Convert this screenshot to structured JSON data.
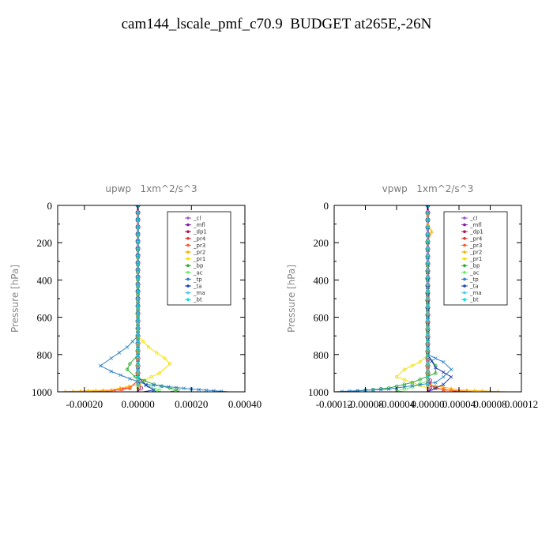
{
  "title": "cam144_lscale_pmf_c70.9  BUDGET at265E,-26N",
  "legend_entries": [
    "_cl",
    "_mfl",
    "_dp1",
    "_pr4",
    "_pr3",
    "_pr2",
    "_pr1",
    "_bp",
    "_ac",
    "_tp",
    "_ta",
    "_ma",
    "_bt"
  ],
  "colors": {
    "_cl": "#9b59d0",
    "_mfl": "#7b1fa2",
    "_dp1": "#b0125a",
    "_pr4": "#e0303a",
    "_pr3": "#ff5a1e",
    "_pr2": "#ffb000",
    "_pr1": "#f2e100",
    "_bp": "#2ea82e",
    "_ac": "#66ee66",
    "_tp": "#2a80c8",
    "_ta": "#1a3fb0",
    "_ma": "#55c8f0",
    "_bt": "#00e0e0"
  },
  "chart_data": [
    {
      "type": "line",
      "title": "upwp   1xm^2/s^3",
      "ylabel": "Pressure [hPa]",
      "xlim": [
        -0.0003,
        0.0004
      ],
      "ylim": [
        1000,
        0
      ],
      "xticks": [
        -0.0002,
        0.0,
        0.0002,
        0.0004
      ],
      "xtick_labels": [
        "-0.00020",
        "0.00000",
        "0.00020",
        "0.00040"
      ],
      "yticks": [
        0,
        200,
        400,
        600,
        800,
        1000
      ],
      "ytick_labels": [
        "0",
        "200",
        "400",
        "600",
        "800",
        "1000"
      ],
      "series": [
        {
          "name": "_cl",
          "points": [
            [
              0,
              0
            ],
            [
              0,
              700
            ],
            [
              0,
              1000
            ]
          ]
        },
        {
          "name": "_mfl",
          "points": [
            [
              0,
              0
            ],
            [
              0,
              700
            ],
            [
              0,
              1000
            ]
          ]
        },
        {
          "name": "_dp1",
          "points": [
            [
              0,
              0
            ],
            [
              0,
              500
            ],
            [
              0,
              900
            ],
            [
              1e-05,
              980
            ],
            [
              0,
              1000
            ]
          ]
        },
        {
          "name": "_pr4",
          "points": [
            [
              0,
              0
            ],
            [
              0,
              940
            ],
            [
              -3e-05,
              980
            ],
            [
              -0.00012,
              1000
            ]
          ]
        },
        {
          "name": "_pr3",
          "points": [
            [
              0,
              0
            ],
            [
              0,
              940
            ],
            [
              -3e-05,
              975
            ],
            [
              -0.0001,
              995
            ],
            [
              -0.0002,
              1000
            ]
          ]
        },
        {
          "name": "_pr2",
          "points": [
            [
              0,
              0
            ],
            [
              0,
              960
            ],
            [
              -0.0001,
              990
            ],
            [
              -0.0003,
              1000
            ]
          ]
        },
        {
          "name": "_pr1",
          "points": [
            [
              0,
              0
            ],
            [
              0,
              700
            ],
            [
              4e-05,
              760
            ],
            [
              0.0001,
              820
            ],
            [
              0.00012,
              850
            ],
            [
              8e-05,
              900
            ],
            [
              2e-05,
              940
            ],
            [
              0,
              980
            ],
            [
              0,
              1000
            ]
          ]
        },
        {
          "name": "_bp",
          "points": [
            [
              0,
              0
            ],
            [
              0,
              800
            ],
            [
              -3e-05,
              850
            ],
            [
              -4e-05,
              880
            ],
            [
              -1e-05,
              920
            ],
            [
              6e-05,
              960
            ],
            [
              0.00015,
              990
            ],
            [
              0.00012,
              1000
            ]
          ]
        },
        {
          "name": "_ac",
          "points": [
            [
              0,
              0
            ],
            [
              0,
              940
            ],
            [
              4e-05,
              970
            ],
            [
              8e-05,
              990
            ],
            [
              5e-05,
              1000
            ]
          ]
        },
        {
          "name": "_tp",
          "points": [
            [
              0,
              0
            ],
            [
              0,
              700
            ],
            [
              -4e-05,
              760
            ],
            [
              -0.0001,
              820
            ],
            [
              -0.00014,
              860
            ],
            [
              -0.0001,
              890
            ],
            [
              -3e-05,
              930
            ],
            [
              3e-05,
              960
            ],
            [
              0.0002,
              985
            ],
            [
              0.00034,
              1000
            ]
          ]
        },
        {
          "name": "_ta",
          "points": [
            [
              0,
              0
            ],
            [
              0,
              920
            ],
            [
              3e-05,
              965
            ],
            [
              6e-05,
              990
            ],
            [
              2e-05,
              1000
            ]
          ]
        },
        {
          "name": "_ma",
          "points": [
            [
              0,
              0
            ],
            [
              0,
              1000
            ]
          ]
        },
        {
          "name": "_bt",
          "points": [
            [
              0,
              0
            ],
            [
              0,
              1000
            ]
          ]
        }
      ]
    },
    {
      "type": "line",
      "title": "vpwp   1xm^2/s^3",
      "ylabel": "Pressure [hPa]",
      "xlim": [
        -0.00012,
        0.00012
      ],
      "ylim": [
        1000,
        0
      ],
      "xticks": [
        -0.00012,
        -8e-05,
        -4e-05,
        0.0,
        4e-05,
        8e-05,
        0.00012
      ],
      "xtick_labels": [
        "-0.00012",
        "-0.00008",
        "-0.00004",
        "0.00000",
        "0.00004",
        "0.00008",
        "0.00012"
      ],
      "yticks": [
        0,
        200,
        400,
        600,
        800,
        1000
      ],
      "ytick_labels": [
        "0",
        "200",
        "400",
        "600",
        "800",
        "1000"
      ],
      "series": [
        {
          "name": "_cl",
          "points": [
            [
              0,
              0
            ],
            [
              0,
              1000
            ]
          ]
        },
        {
          "name": "_mfl",
          "points": [
            [
              0,
              0
            ],
            [
              0,
              1000
            ]
          ]
        },
        {
          "name": "_dp1",
          "points": [
            [
              0,
              0
            ],
            [
              0,
              900
            ],
            [
              5e-06,
              980
            ],
            [
              0,
              1000
            ]
          ]
        },
        {
          "name": "_pr4",
          "points": [
            [
              0,
              0
            ],
            [
              0,
              950
            ],
            [
              1e-05,
              980
            ],
            [
              4e-05,
              1000
            ]
          ]
        },
        {
          "name": "_pr3",
          "points": [
            [
              0,
              0
            ],
            [
              0,
              960
            ],
            [
              2e-05,
              990
            ],
            [
              6e-05,
              1000
            ]
          ]
        },
        {
          "name": "_pr2",
          "points": [
            [
              0,
              0
            ],
            [
              0,
              100
            ],
            [
              5e-06,
              140
            ],
            [
              0,
              200
            ],
            [
              0,
              960
            ],
            [
              4e-05,
              990
            ],
            [
              0.0001,
              1000
            ]
          ]
        },
        {
          "name": "_pr1",
          "points": [
            [
              0,
              0
            ],
            [
              0,
              800
            ],
            [
              -1e-05,
              840
            ],
            [
              -3e-05,
              880
            ],
            [
              -4e-05,
              920
            ],
            [
              -2e-05,
              950
            ],
            [
              0,
              980
            ],
            [
              0,
              1000
            ]
          ]
        },
        {
          "name": "_bp",
          "points": [
            [
              0,
              0
            ],
            [
              0,
              800
            ],
            [
              1e-05,
              860
            ],
            [
              1e-05,
              900
            ],
            [
              -2e-05,
              950
            ],
            [
              -5e-05,
              980
            ],
            [
              -0.0001,
              1000
            ]
          ]
        },
        {
          "name": "_ac",
          "points": [
            [
              0,
              0
            ],
            [
              0,
              940
            ],
            [
              -2e-05,
              975
            ],
            [
              -4e-05,
              995
            ],
            [
              -3e-05,
              1000
            ]
          ]
        },
        {
          "name": "_tp",
          "points": [
            [
              0,
              0
            ],
            [
              0,
              800
            ],
            [
              2e-05,
              840
            ],
            [
              3e-05,
              880
            ],
            [
              2e-05,
              920
            ],
            [
              1e-05,
              950
            ],
            [
              -5e-05,
              985
            ],
            [
              -0.00012,
              1000
            ]
          ]
        },
        {
          "name": "_ta",
          "points": [
            [
              0,
              0
            ],
            [
              0,
              800
            ],
            [
              1e-05,
              870
            ],
            [
              3e-05,
              920
            ],
            [
              2e-05,
              960
            ],
            [
              0,
              1000
            ]
          ]
        },
        {
          "name": "_ma",
          "points": [
            [
              0,
              0
            ],
            [
              0,
              1000
            ]
          ]
        },
        {
          "name": "_bt",
          "points": [
            [
              0,
              0
            ],
            [
              0,
              1000
            ]
          ]
        }
      ]
    }
  ]
}
